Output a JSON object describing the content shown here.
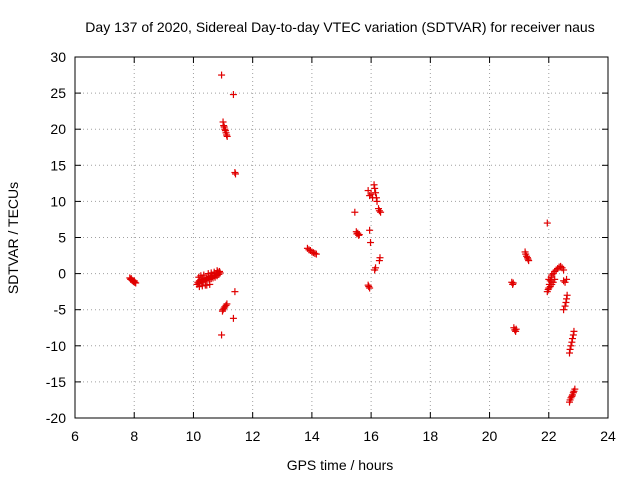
{
  "chart_data": {
    "type": "scatter",
    "title": "Day 137 of 2020, Sidereal Day-to-day VTEC variation (SDTVAR) for receiver naus",
    "xlabel": "GPS time / hours",
    "ylabel": "SDTVAR / TECUs",
    "xlim": [
      6,
      24
    ],
    "ylim": [
      -20,
      30
    ],
    "xticks": [
      "6",
      "8",
      "10",
      "12",
      "14",
      "16",
      "18",
      "20",
      "22",
      "24"
    ],
    "yticks": [
      "-20",
      "-15",
      "-10",
      "-5",
      "0",
      "5",
      "10",
      "15",
      "20",
      "25",
      "30"
    ],
    "grid": true,
    "marker": "+",
    "color": "#e00000",
    "series": [
      {
        "name": "SDTVAR",
        "points": [
          [
            7.85,
            -0.6
          ],
          [
            7.88,
            -0.8
          ],
          [
            7.92,
            -0.9
          ],
          [
            7.95,
            -1.0
          ],
          [
            7.98,
            -1.1
          ],
          [
            8.02,
            -1.2
          ],
          [
            8.05,
            -1.3
          ],
          [
            7.9,
            -0.7
          ],
          [
            8.0,
            -1.0
          ],
          [
            10.12,
            -1.5
          ],
          [
            10.15,
            -1.2
          ],
          [
            10.18,
            -1.4
          ],
          [
            10.2,
            -1.0
          ],
          [
            10.22,
            -1.3
          ],
          [
            10.25,
            -0.9
          ],
          [
            10.28,
            -1.2
          ],
          [
            10.3,
            -0.8
          ],
          [
            10.33,
            -1.1
          ],
          [
            10.36,
            -0.7
          ],
          [
            10.4,
            -1.0
          ],
          [
            10.43,
            -0.6
          ],
          [
            10.46,
            -0.9
          ],
          [
            10.5,
            -0.5
          ],
          [
            10.53,
            -0.8
          ],
          [
            10.56,
            -0.4
          ],
          [
            10.6,
            -0.7
          ],
          [
            10.63,
            -0.3
          ],
          [
            10.66,
            -0.6
          ],
          [
            10.7,
            -0.2
          ],
          [
            10.73,
            -0.5
          ],
          [
            10.76,
            0.0
          ],
          [
            10.8,
            -0.3
          ],
          [
            10.83,
            0.2
          ],
          [
            10.86,
            -0.1
          ],
          [
            10.88,
            0.3
          ],
          [
            10.9,
            0.1
          ],
          [
            10.18,
            -0.5
          ],
          [
            10.25,
            -0.3
          ],
          [
            10.35,
            -0.2
          ],
          [
            10.45,
            -1.6
          ],
          [
            10.55,
            -1.5
          ],
          [
            10.2,
            -1.8
          ],
          [
            10.3,
            -1.7
          ],
          [
            10.4,
            -1.6
          ],
          [
            10.5,
            0.0
          ],
          [
            10.6,
            0.1
          ],
          [
            10.7,
            0.2
          ],
          [
            10.8,
            0.4
          ],
          [
            10.95,
            27.5
          ],
          [
            11.0,
            21.0
          ],
          [
            11.02,
            20.5
          ],
          [
            11.04,
            20.3
          ],
          [
            11.06,
            20.0
          ],
          [
            11.08,
            19.8
          ],
          [
            11.1,
            19.5
          ],
          [
            11.12,
            19.2
          ],
          [
            11.14,
            19.0
          ],
          [
            11.35,
            24.8
          ],
          [
            11.4,
            14.0
          ],
          [
            11.42,
            13.8
          ],
          [
            10.98,
            -5.2
          ],
          [
            11.0,
            -5.0
          ],
          [
            11.03,
            -4.8
          ],
          [
            11.06,
            -4.6
          ],
          [
            11.1,
            -4.4
          ],
          [
            11.13,
            -4.2
          ],
          [
            11.4,
            -2.5
          ],
          [
            11.35,
            -6.2
          ],
          [
            10.95,
            -8.5
          ],
          [
            13.85,
            3.5
          ],
          [
            13.9,
            3.3
          ],
          [
            13.95,
            3.2
          ],
          [
            14.0,
            3.0
          ],
          [
            14.05,
            2.9
          ],
          [
            14.1,
            2.8
          ],
          [
            14.15,
            2.7
          ],
          [
            15.45,
            8.5
          ],
          [
            15.5,
            5.8
          ],
          [
            15.52,
            5.5
          ],
          [
            15.55,
            5.6
          ],
          [
            15.58,
            5.3
          ],
          [
            15.6,
            5.4
          ],
          [
            15.9,
            -1.6
          ],
          [
            15.92,
            -1.8
          ],
          [
            15.95,
            -2.0
          ],
          [
            15.95,
            6.0
          ],
          [
            15.98,
            4.3
          ],
          [
            15.9,
            11.5
          ],
          [
            15.95,
            10.8
          ],
          [
            16.0,
            11.0
          ],
          [
            16.05,
            10.5
          ],
          [
            16.1,
            12.3
          ],
          [
            16.12,
            11.8
          ],
          [
            16.15,
            11.2
          ],
          [
            16.18,
            10.5
          ],
          [
            16.2,
            10.0
          ],
          [
            16.25,
            9.0
          ],
          [
            16.28,
            8.7
          ],
          [
            16.32,
            8.5
          ],
          [
            16.3,
            2.2
          ],
          [
            16.28,
            1.8
          ],
          [
            16.15,
            0.8
          ],
          [
            16.12,
            0.5
          ],
          [
            20.75,
            -1.2
          ],
          [
            20.78,
            -1.5
          ],
          [
            20.8,
            -1.3
          ],
          [
            20.82,
            -7.5
          ],
          [
            20.85,
            -7.8
          ],
          [
            20.88,
            -8.0
          ],
          [
            20.9,
            -7.7
          ],
          [
            21.2,
            3.0
          ],
          [
            21.22,
            2.7
          ],
          [
            21.25,
            2.4
          ],
          [
            21.28,
            2.2
          ],
          [
            21.3,
            2.0
          ],
          [
            21.32,
            1.8
          ],
          [
            21.95,
            7.0
          ],
          [
            21.95,
            -2.5
          ],
          [
            21.98,
            -2.2
          ],
          [
            22.0,
            -2.0
          ],
          [
            22.02,
            -1.5
          ],
          [
            22.05,
            -1.0
          ],
          [
            22.08,
            -0.5
          ],
          [
            22.1,
            -0.2
          ],
          [
            22.15,
            0.0
          ],
          [
            22.2,
            0.3
          ],
          [
            22.25,
            0.5
          ],
          [
            22.3,
            0.7
          ],
          [
            22.35,
            0.9
          ],
          [
            22.4,
            1.0
          ],
          [
            22.45,
            0.8
          ],
          [
            22.5,
            0.5
          ],
          [
            22.0,
            -0.8
          ],
          [
            22.05,
            -1.8
          ],
          [
            22.1,
            -1.5
          ],
          [
            22.15,
            -1.2
          ],
          [
            22.2,
            -0.8
          ],
          [
            22.5,
            -5.0
          ],
          [
            22.55,
            -4.5
          ],
          [
            22.58,
            -4.0
          ],
          [
            22.6,
            -3.5
          ],
          [
            22.62,
            -3.0
          ],
          [
            22.5,
            -1.0
          ],
          [
            22.55,
            -1.2
          ],
          [
            22.6,
            -0.8
          ],
          [
            22.7,
            -11.0
          ],
          [
            22.72,
            -10.5
          ],
          [
            22.75,
            -10.0
          ],
          [
            22.78,
            -9.5
          ],
          [
            22.8,
            -9.0
          ],
          [
            22.83,
            -8.5
          ],
          [
            22.85,
            -8.0
          ],
          [
            22.7,
            -17.8
          ],
          [
            22.72,
            -17.5
          ],
          [
            22.75,
            -17.2
          ],
          [
            22.78,
            -17.0
          ],
          [
            22.8,
            -16.8
          ],
          [
            22.83,
            -16.5
          ],
          [
            22.85,
            -16.3
          ],
          [
            22.88,
            -16.0
          ]
        ]
      }
    ]
  }
}
